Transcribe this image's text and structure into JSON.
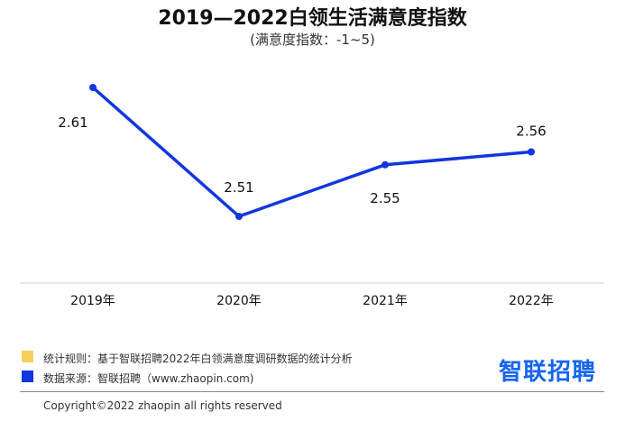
{
  "title": "2019—2022白领生活满意度指数",
  "subtitle": "(满意度指数：-1~5)",
  "chart_data": {
    "type": "line",
    "title": "2019—2022白领生活满意度指数",
    "subtitle": "(满意度指数：-1~5)",
    "categories": [
      "2019年",
      "2020年",
      "2021年",
      "2022年"
    ],
    "values": [
      2.61,
      2.51,
      2.55,
      2.56
    ],
    "labels": [
      "2.61",
      "2.51",
      "2.55",
      "2.56"
    ],
    "ylim": [
      2.45,
      2.65
    ],
    "grid": false,
    "line_color": "#1236e0"
  },
  "footer": {
    "note1": "统计规则：基于智联招聘2022年白领满意度调研数据的统计分析",
    "note2": "数据来源：智联招聘（www.zhaopin.com)",
    "note1_color": "#f7cf5a",
    "note2_color": "#1236e0",
    "brand": "智联招聘",
    "copyright": "Copyright©2022 zhaopin all rights reserved"
  }
}
